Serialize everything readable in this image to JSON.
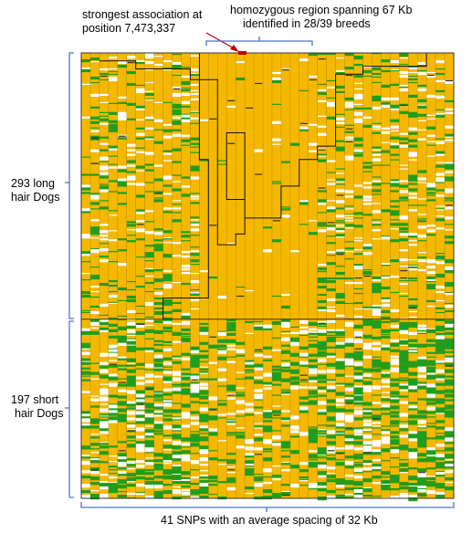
{
  "annotations": {
    "strongest": {
      "line1": "strongest association at",
      "line2": "position 7,473,337"
    },
    "homozygous": {
      "line1": "homozygous region spanning 67 Kb",
      "line2": "identified in 28/39 breeds"
    },
    "long_hair": {
      "line1": "293 long",
      "line2": "hair Dogs"
    },
    "short_hair": {
      "line1": "197 short",
      "line2": "hair Dogs"
    },
    "snps": "41 SNPs with an average spacing of 32 Kb"
  },
  "chart_data": {
    "type": "heatmap",
    "title": "",
    "snp_count": 41,
    "groups": [
      {
        "name": "293 long hair Dogs",
        "rows": 293
      },
      {
        "name": "197 short hair Dogs",
        "rows": 197
      }
    ],
    "xlabel": "41 SNPs with an average spacing of 32 Kb",
    "strongest_association_position": "7,473,337",
    "homozygous_region": "67 Kb",
    "homozygous_breeds": "28/39",
    "colors": {
      "background": "#f5b800",
      "alternate": "#1e9e1e",
      "missing": "#ffffff",
      "marker": "#c00000",
      "bracket": "#4a78c0",
      "divider": "#333333"
    }
  }
}
